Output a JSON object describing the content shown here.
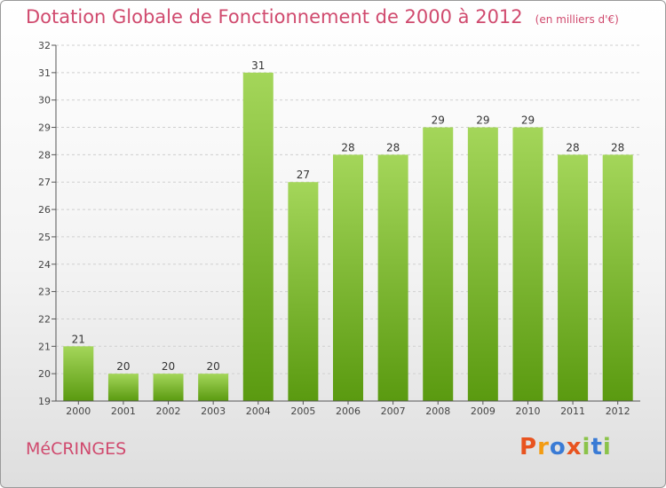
{
  "header": {
    "title": "Dotation Globale de Fonctionnement de 2000 à 2012",
    "unit": "(en milliers d'€)"
  },
  "footer": {
    "commune": "MéCRINGES",
    "logo_text": "Proxiti"
  },
  "colors": {
    "title": "#d04a6e",
    "bar_top": "#a4d65a",
    "bar_bottom": "#5a9a10",
    "logo_letters": [
      "#e8531f",
      "#f39c12",
      "#3a7bd5",
      "#e8531f",
      "#8bc34a",
      "#3a7bd5",
      "#8bc34a"
    ]
  },
  "chart_data": {
    "type": "bar",
    "title": "Dotation Globale de Fonctionnement de 2000 à 2012",
    "categories": [
      "2000",
      "2001",
      "2002",
      "2003",
      "2004",
      "2005",
      "2006",
      "2007",
      "2008",
      "2009",
      "2010",
      "2011",
      "2012"
    ],
    "values": [
      21,
      20,
      20,
      20,
      31,
      27,
      28,
      28,
      29,
      29,
      29,
      28,
      28
    ],
    "ylim": [
      19,
      32
    ],
    "yticks": [
      19,
      20,
      21,
      22,
      23,
      24,
      25,
      26,
      27,
      28,
      29,
      30,
      31,
      32
    ],
    "grid": true,
    "xlabel": "",
    "ylabel": ""
  }
}
